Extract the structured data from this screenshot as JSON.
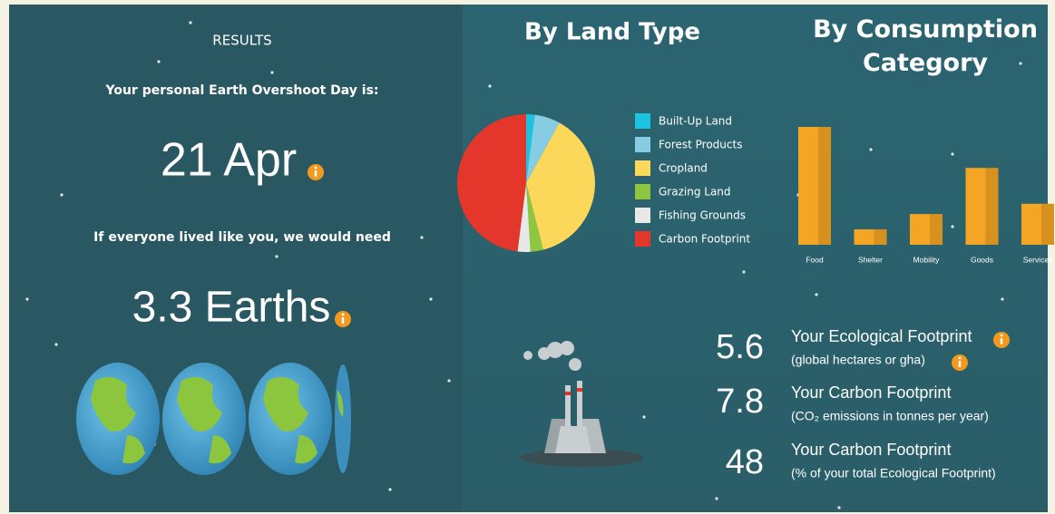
{
  "results": {
    "heading": "RESULTS",
    "overshoot_label": "Your personal Earth Overshoot Day is:",
    "overshoot_day": "21 Apr",
    "earths_label": "If everyone lived like you, we would need",
    "earths": "3.3 Earths"
  },
  "chart_data": [
    {
      "type": "pie",
      "title": "By Land Type",
      "categories": [
        "Built-Up Land",
        "Forest Products",
        "Cropland",
        "Grazing Land",
        "Fishing Grounds",
        "Carbon Footprint"
      ],
      "values": [
        2,
        6,
        38,
        3,
        3,
        48
      ],
      "colors": [
        "#1cc3e0",
        "#86cde3",
        "#fbd85a",
        "#8fc63f",
        "#e8e8e8",
        "#e5362b"
      ]
    },
    {
      "type": "bar",
      "title": "By Consumption Category",
      "categories": [
        "Food",
        "Shelter",
        "Mobility",
        "Goods",
        "Services"
      ],
      "values": [
        2.3,
        0.3,
        0.6,
        1.5,
        0.8
      ],
      "color": "#f5a524"
    }
  ],
  "footprints": [
    {
      "value": 5.6,
      "label": "Your Ecological Footprint",
      "note": "(global hectares or gha)"
    },
    {
      "value": 7.8,
      "label": "Your Carbon Footprint",
      "note": "(CO₂ emissions in tonnes per year)"
    },
    {
      "value": 48,
      "label": "Your Carbon Footprint",
      "note": "(% of your total Ecological Footprint)"
    }
  ]
}
